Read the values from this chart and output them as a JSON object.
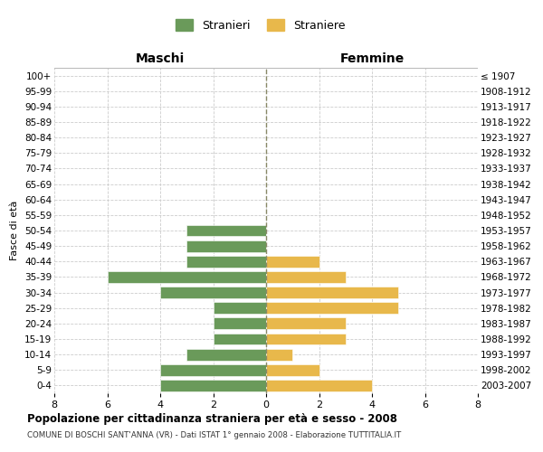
{
  "age_groups": [
    "0-4",
    "5-9",
    "10-14",
    "15-19",
    "20-24",
    "25-29",
    "30-34",
    "35-39",
    "40-44",
    "45-49",
    "50-54",
    "55-59",
    "60-64",
    "65-69",
    "70-74",
    "75-79",
    "80-84",
    "85-89",
    "90-94",
    "95-99",
    "100+"
  ],
  "birth_years": [
    "2003-2007",
    "1998-2002",
    "1993-1997",
    "1988-1992",
    "1983-1987",
    "1978-1982",
    "1973-1977",
    "1968-1972",
    "1963-1967",
    "1958-1962",
    "1953-1957",
    "1948-1952",
    "1943-1947",
    "1938-1942",
    "1933-1937",
    "1928-1932",
    "1923-1927",
    "1918-1922",
    "1913-1917",
    "1908-1912",
    "≤ 1907"
  ],
  "maschi": [
    4,
    4,
    3,
    2,
    2,
    2,
    4,
    6,
    3,
    3,
    3,
    0,
    0,
    0,
    0,
    0,
    0,
    0,
    0,
    0,
    0
  ],
  "femmine": [
    4,
    2,
    1,
    3,
    3,
    5,
    5,
    3,
    2,
    0,
    0,
    0,
    0,
    0,
    0,
    0,
    0,
    0,
    0,
    0,
    0
  ],
  "maschi_color": "#6a9a5a",
  "femmine_color": "#e8b84b",
  "title": "Popolazione per cittadinanza straniera per età e sesso - 2008",
  "subtitle": "COMUNE DI BOSCHI SANT'ANNA (VR) - Dati ISTAT 1° gennaio 2008 - Elaborazione TUTTITALIA.IT",
  "ylabel_left": "Fasce di età",
  "xlabel_left": "Maschi",
  "xlabel_right": "Femmine",
  "legend_maschi": "Stranieri",
  "legend_femmine": "Straniere",
  "xlim": 8,
  "background_color": "#ffffff",
  "grid_color": "#cccccc",
  "center_line_color": "#888866"
}
